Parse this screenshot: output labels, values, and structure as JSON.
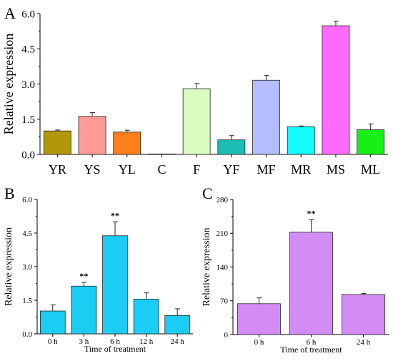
{
  "chart_data": [
    {
      "panel_label": "A",
      "type": "bar",
      "categories": [
        "YR",
        "YS",
        "YL",
        "C",
        "F",
        "YF",
        "MF",
        "MR",
        "MS",
        "ML"
      ],
      "values": [
        1.0,
        1.62,
        0.95,
        0.02,
        2.8,
        0.62,
        3.16,
        1.18,
        5.48,
        1.05
      ],
      "errors": [
        0.04,
        0.16,
        0.08,
        0.0,
        0.22,
        0.18,
        0.2,
        0.03,
        0.2,
        0.25
      ],
      "colors": [
        "#b3970a",
        "#ff9b96",
        "#ff7f1a",
        "#d0d0d0",
        "#d9fcc0",
        "#1fbeb4",
        "#b3bdff",
        "#13fbfb",
        "#ff6bff",
        "#17f017"
      ],
      "significance": [
        "",
        "",
        "",
        "",
        "",
        "",
        "",
        "",
        "",
        ""
      ],
      "xlabel": "",
      "ylabel": "Relative expression",
      "ylim": [
        0,
        6.0
      ],
      "yticks": [
        "0.0",
        "1.5",
        "3.0",
        "4.5",
        "6.0"
      ]
    },
    {
      "panel_label": "B",
      "type": "bar",
      "categories": [
        "0 h",
        "3 h",
        "6 h",
        "12 h",
        "24 h"
      ],
      "values": [
        1.02,
        2.13,
        4.38,
        1.55,
        0.82
      ],
      "errors": [
        0.27,
        0.17,
        0.62,
        0.28,
        0.3
      ],
      "colors": [
        "#1ccdf3",
        "#1ccdf3",
        "#1ccdf3",
        "#1ccdf3",
        "#1ccdf3"
      ],
      "significance": [
        "",
        "**",
        "**",
        "",
        ""
      ],
      "xlabel": "Time of treatment",
      "ylabel": "Relative expression",
      "ylim": [
        0,
        6.0
      ],
      "yticks": [
        "0.0",
        "1.5",
        "3.0",
        "4.5",
        "6.0"
      ]
    },
    {
      "panel_label": "C",
      "type": "bar",
      "categories": [
        "0 h",
        "6 h",
        "24 h"
      ],
      "values": [
        64,
        212,
        83
      ],
      "errors": [
        12,
        26,
        2
      ],
      "colors": [
        "#d48cf5",
        "#d48cf5",
        "#d48cf5"
      ],
      "significance": [
        "",
        "**",
        ""
      ],
      "xlabel": "Time of treatment",
      "ylabel": "Relative expression",
      "ylim": [
        0,
        280
      ],
      "yticks": [
        "0",
        "70",
        "140",
        "210",
        "280"
      ]
    }
  ]
}
